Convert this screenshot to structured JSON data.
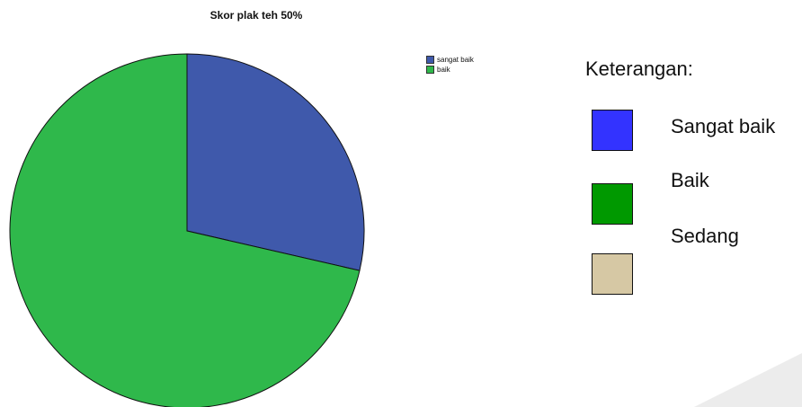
{
  "chart_data": {
    "type": "pie",
    "title": "Skor plak teh 50%",
    "categories": [
      "sangat baik",
      "baik"
    ],
    "values": [
      28.6,
      71.4
    ],
    "colors": [
      "#3f59ab",
      "#2fb84b"
    ],
    "start_angle_deg": 0,
    "direction": "clockwise",
    "legend_position": "top-right"
  },
  "keterangan": {
    "title": "Keterangan:",
    "items": [
      {
        "label": "Sangat baik",
        "color": "#3333ff"
      },
      {
        "label": "Baik",
        "color": "#009900"
      },
      {
        "label": "Sedang",
        "color": "#d6c8a4"
      }
    ]
  }
}
